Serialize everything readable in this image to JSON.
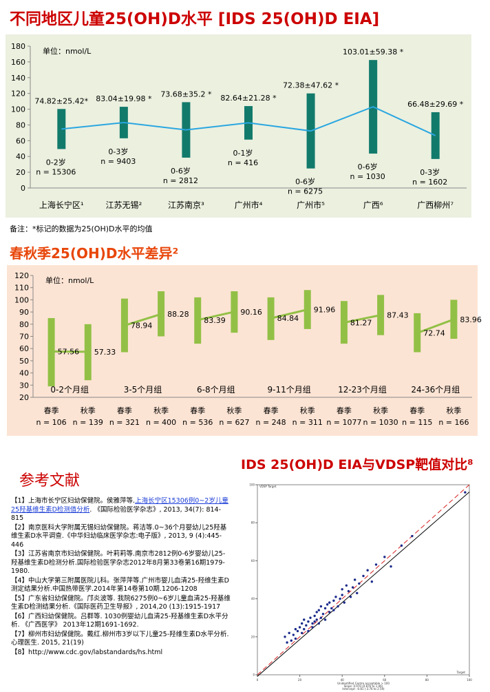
{
  "titles": {
    "chart1": "不同地区儿童25(OH)D水平 [IDS 25(OH)D EIA]",
    "chart2": "春秋季25(OH)D水平差异²",
    "chart3": "IDS 25(OH)D EIA与VDSP靶值对比⁸",
    "refs": "参考文献"
  },
  "note": "备注：*标记的数据为25(OH)D水平的均值",
  "references": [
    {
      "num": "【1】",
      "pre": "上海市长宁区妇幼保健院。侯雅萍等.",
      "link": "上海长宁区15306例0~2岁儿童25羟基维生素D检测值分析",
      "post": ". 《国际检验医学杂志》, 2013, 34(7): 814-815"
    },
    {
      "num": "【2】",
      "pre": "南京医科大学附属无锡妇幼保健院。蒋洁等.0~36个月婴幼儿25羟基维生素D水平调查.《中华妇幼临床医学杂志:电子版》, 2013, 9 (4):445-446",
      "link": "",
      "post": ""
    },
    {
      "num": "【3】",
      "pre": "江苏省南京市妇幼保健院。叶莉莉等.南京市2812例0-6岁婴幼儿25-羟基维生素D检测分析.国际检验医学杂志2012年8月第33卷第16期1979-1980.",
      "link": "",
      "post": ""
    },
    {
      "num": "【4】",
      "pre": "中山大学第三附属医院儿科。张萍萍等.广州市婴儿血清25-羟维生素D测定结果分析.中国热带医学.2014年第14卷第10期.1206-1208",
      "link": "",
      "post": ""
    },
    {
      "num": "【5】",
      "pre": "广东省妇幼保健院。邝炎波等. 我院6275例0~6岁儿童血清25-羟基维生素D检测结果分析.《国际医药卫生导报》, 2014,20 (13):1915-1917",
      "link": "",
      "post": ""
    },
    {
      "num": "【6】",
      "pre": "广西妇幼保健院。吕群等. 1030例婴幼儿血清25-羟基维生素D水平分析. 《广西医学》 2013年12期1691-1692.",
      "link": "",
      "post": ""
    },
    {
      "num": "【7】",
      "pre": "柳州市妇幼保健院。戴红.柳州市3岁以下儿童25-羟维生素D水平分析. 心理医生. 2015, 21(19)",
      "link": "",
      "post": ""
    },
    {
      "num": "【8】",
      "pre": "http://www.cdc.gov/labstandards/hs.html",
      "link": "",
      "post": ""
    }
  ],
  "colors": {
    "bar1": "#127a6b",
    "line1": "#29a6e0",
    "bar2": "#92c046",
    "line2": "#92c046",
    "title": "#cc0000",
    "scatter_pt": "#1a2a8a",
    "diag": "#d62020"
  },
  "chart_data": [
    {
      "type": "bar",
      "title": "不同地区儿童25(OH)D水平 [IDS 25(OH)D EIA]",
      "unit_label": "单位：nmol/L",
      "ylim": [
        0,
        180
      ],
      "yticks": [
        0,
        20,
        40,
        60,
        80,
        100,
        120,
        140,
        160,
        180
      ],
      "categories": [
        "上海长宁区¹",
        "江苏无锡²",
        "江苏南京³",
        "广州市⁴",
        "广州市⁵",
        "广西⁶",
        "广西柳州⁷"
      ],
      "mean": [
        74.82,
        83.04,
        73.68,
        82.64,
        72.38,
        103.01,
        66.48
      ],
      "sd": [
        25.42,
        19.98,
        35.2,
        21.28,
        47.62,
        59.38,
        29.69
      ],
      "value_labels": [
        "74.82±25.42*",
        "83.04±19.98 *",
        "73.68±35.2 *",
        "82.64±21.28 *",
        "72.38±47.62 *",
        "103.01±59.38 *",
        "66.48±29.69 *"
      ],
      "age_groups": [
        "0-2岁",
        "0-3岁",
        "0-6岁",
        "0-1岁",
        "0-6岁",
        "0-6岁",
        "0-3岁"
      ],
      "n_labels": [
        "n = 15306",
        "n = 9403",
        "n = 2812",
        "n = 416",
        "n = 6275",
        "n = 1030",
        "n = 1602"
      ]
    },
    {
      "type": "bar",
      "title": "春秋季25(OH)D水平差异²",
      "unit_label": "单位：nmol/L",
      "ylim": [
        20,
        120
      ],
      "yticks": [
        20,
        30,
        40,
        50,
        60,
        70,
        80,
        90,
        100,
        110,
        120
      ],
      "groups": [
        "0-2个月组",
        "3-5个月组",
        "6-8个月组",
        "9-11个月组",
        "12-23个月组",
        "24-36个月组"
      ],
      "seasons": [
        "春季",
        "秋季"
      ],
      "values": [
        [
          57.56,
          57.33
        ],
        [
          78.94,
          88.28
        ],
        [
          83.39,
          90.16
        ],
        [
          84.84,
          91.96
        ],
        [
          81.27,
          87.43
        ],
        [
          72.74,
          83.96
        ]
      ],
      "bar_ranges": [
        [
          [
            29,
            85
          ],
          [
            34,
            80
          ]
        ],
        [
          [
            57,
            101
          ],
          [
            70,
            107
          ]
        ],
        [
          [
            64,
            102
          ],
          [
            73,
            107
          ]
        ],
        [
          [
            67,
            102
          ],
          [
            76,
            108
          ]
        ],
        [
          [
            64,
            99
          ],
          [
            71,
            104
          ]
        ],
        [
          [
            57,
            89
          ],
          [
            68,
            100
          ]
        ]
      ],
      "n_labels": [
        [
          "n = 106",
          "n = 139"
        ],
        [
          "n = 321",
          "n = 400"
        ],
        [
          "n = 536",
          "n = 627"
        ],
        [
          "n = 248",
          "n = 311"
        ],
        [
          "n = 1077",
          "n = 1030"
        ],
        [
          "n = 115",
          "n = 166"
        ]
      ]
    },
    {
      "type": "scatter",
      "title": "IDS 25(OH)D EIA与VDSP靶值对比⁸",
      "xlabel": "Unidentified Centre acceptable > 100",
      "ylabel": "VDSP Target",
      "ylabel_short": "Target",
      "xlim": [
        0,
        100
      ],
      "ylim": [
        0,
        100
      ],
      "xticks": [
        0,
        20,
        40,
        60,
        80,
        100
      ],
      "yticks": [
        0,
        20,
        40,
        60,
        80,
        100
      ],
      "annotations": [
        "Slope: 0.970 (0.876 to 1.06)",
        "Intercept: -0.81 (-3.76 to 2.59)"
      ],
      "x": [
        13,
        14,
        15,
        16,
        17,
        18,
        18,
        19,
        20,
        21,
        21,
        22,
        22,
        23,
        24,
        24,
        25,
        26,
        26,
        27,
        27,
        28,
        28,
        29,
        29,
        30,
        30,
        31,
        32,
        32,
        33,
        34,
        34,
        35,
        36,
        36,
        37,
        38,
        39,
        40,
        40,
        41,
        42,
        43,
        44,
        45,
        46,
        47,
        48,
        50,
        52,
        54,
        56,
        60,
        63,
        68,
        73,
        98
      ],
      "y": [
        20,
        17,
        22,
        18,
        21,
        24,
        19,
        23,
        25,
        22,
        27,
        24,
        29,
        26,
        28,
        23,
        30,
        27,
        25,
        31,
        28,
        33,
        29,
        27,
        34,
        30,
        36,
        32,
        29,
        35,
        37,
        33,
        38,
        35,
        39,
        34,
        41,
        36,
        40,
        42,
        45,
        38,
        47,
        44,
        41,
        46,
        50,
        43,
        48,
        52,
        55,
        49,
        58,
        62,
        57,
        68,
        73,
        96
      ]
    }
  ]
}
